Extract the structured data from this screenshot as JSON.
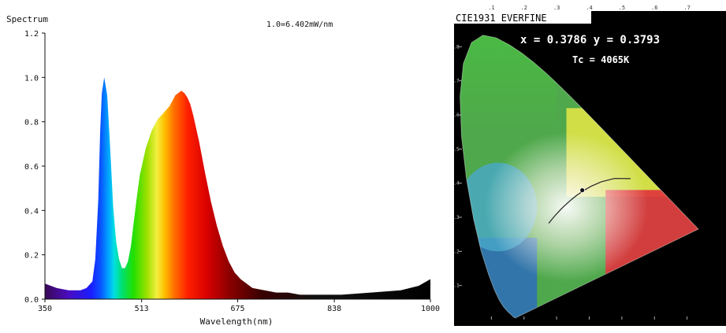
{
  "chart_data": [
    {
      "type": "area",
      "title": "Spectrum",
      "annotation": "1.0=6.402mW/nm",
      "xlabel": "Wavelength(nm)",
      "ylabel": "",
      "xlim": [
        350,
        1000
      ],
      "ylim": [
        0,
        1.2
      ],
      "x_ticks": [
        350,
        513,
        675,
        838,
        1000
      ],
      "y_ticks": [
        "0.0",
        "0.2",
        "0.4",
        "0.6",
        "0.8",
        "1.0",
        "1.2"
      ],
      "fill": "wavelength color gradient",
      "grid": false,
      "series": [
        {
          "x": [
            350,
            370,
            390,
            400,
            410,
            420,
            430,
            435,
            440,
            443,
            446,
            450,
            455,
            460,
            465,
            470,
            475,
            480,
            485,
            490,
            495,
            500,
            505,
            510,
            520,
            530,
            540,
            550,
            560,
            570,
            580,
            585,
            590,
            595,
            600,
            610,
            620,
            630,
            640,
            650,
            660,
            670,
            680,
            690,
            700,
            720,
            740,
            760,
            780,
            800,
            850,
            900,
            950,
            980,
            1000
          ],
          "y": [
            0.07,
            0.05,
            0.04,
            0.04,
            0.04,
            0.05,
            0.08,
            0.18,
            0.45,
            0.75,
            0.93,
            1.0,
            0.92,
            0.68,
            0.42,
            0.26,
            0.18,
            0.14,
            0.14,
            0.17,
            0.24,
            0.35,
            0.46,
            0.56,
            0.68,
            0.76,
            0.81,
            0.84,
            0.87,
            0.92,
            0.94,
            0.93,
            0.91,
            0.88,
            0.83,
            0.71,
            0.57,
            0.44,
            0.33,
            0.24,
            0.17,
            0.12,
            0.09,
            0.07,
            0.05,
            0.04,
            0.03,
            0.03,
            0.02,
            0.02,
            0.02,
            0.03,
            0.04,
            0.06,
            0.09
          ]
        }
      ]
    },
    {
      "type": "scatter",
      "title": "CIE1931 EVERFINE",
      "readouts": [
        "x = 0.3786  y = 0.3793",
        "Tc = 4065K"
      ],
      "xlim": [
        0,
        0.8
      ],
      "ylim": [
        0,
        0.9
      ],
      "x_ticks": [
        ".1",
        ".2",
        ".3",
        ".4",
        ".5",
        ".6",
        ".7"
      ],
      "y_ticks": [
        ".1",
        ".2",
        ".3",
        ".4",
        ".5",
        ".6",
        ".7",
        ".8"
      ],
      "locus": {
        "x": [
          0.1741,
          0.1738,
          0.1733,
          0.1726,
          0.1703,
          0.1666,
          0.1644,
          0.1611,
          0.1566,
          0.151,
          0.144,
          0.1355,
          0.1241,
          0.1096,
          0.0913,
          0.0687,
          0.0454,
          0.0235,
          0.0082,
          0.0039,
          0.0139,
          0.0389,
          0.0743,
          0.1142,
          0.1547,
          0.1929,
          0.2296,
          0.2658,
          0.3016,
          0.3373,
          0.3731,
          0.4087,
          0.4441,
          0.4788,
          0.5125,
          0.5448,
          0.5752,
          0.6029,
          0.627,
          0.6482,
          0.6658,
          0.6801,
          0.6915,
          0.7006,
          0.7079,
          0.714,
          0.719,
          0.723,
          0.726,
          0.7283,
          0.73,
          0.7347
        ],
        "y": [
          0.005,
          0.0049,
          0.0048,
          0.0048,
          0.0058,
          0.0089,
          0.0109,
          0.0138,
          0.0177,
          0.0227,
          0.0297,
          0.0399,
          0.0578,
          0.0868,
          0.1327,
          0.2007,
          0.295,
          0.4127,
          0.5384,
          0.6548,
          0.7502,
          0.812,
          0.8338,
          0.8262,
          0.8059,
          0.7816,
          0.7543,
          0.7243,
          0.6923,
          0.6589,
          0.6245,
          0.5896,
          0.5547,
          0.5202,
          0.4866,
          0.4544,
          0.4242,
          0.3965,
          0.3725,
          0.3514,
          0.334,
          0.3197,
          0.3083,
          0.2993,
          0.292,
          0.2859,
          0.2809,
          0.277,
          0.274,
          0.2717,
          0.27,
          0.2653
        ]
      },
      "planckian_locus": {
        "x": [
          0.5267,
          0.477,
          0.4369,
          0.4053,
          0.3805,
          0.3608,
          0.3451,
          0.3325,
          0.3221,
          0.3135,
          0.3064,
          0.2952,
          0.2869,
          0.2806,
          0.2757
        ],
        "y": [
          0.4133,
          0.4137,
          0.4041,
          0.3907,
          0.3768,
          0.3636,
          0.3516,
          0.3411,
          0.3318,
          0.3237,
          0.3166,
          0.3048,
          0.2956,
          0.2883,
          0.2824
        ]
      },
      "point": {
        "x": 0.3786,
        "y": 0.3793
      }
    }
  ]
}
